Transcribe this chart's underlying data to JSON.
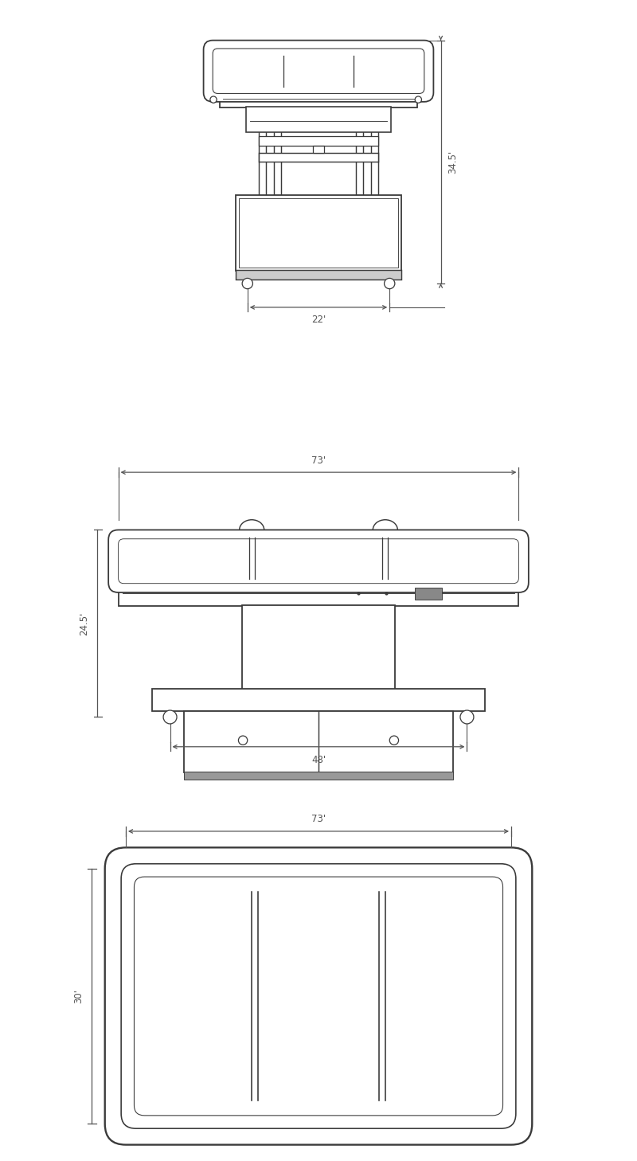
{
  "bg_color": "#ffffff",
  "line_color": "#3a3a3a",
  "line_width": 1.3,
  "dim_line_color": "#555555",
  "fig_width": 8.0,
  "fig_height": 14.58,
  "dim_345": "34.5'",
  "dim_22": "22'",
  "dim_73_side": "73'",
  "dim_245": "24.5'",
  "dim_48": "48'",
  "dim_73_top": "73'",
  "dim_30": "30'"
}
